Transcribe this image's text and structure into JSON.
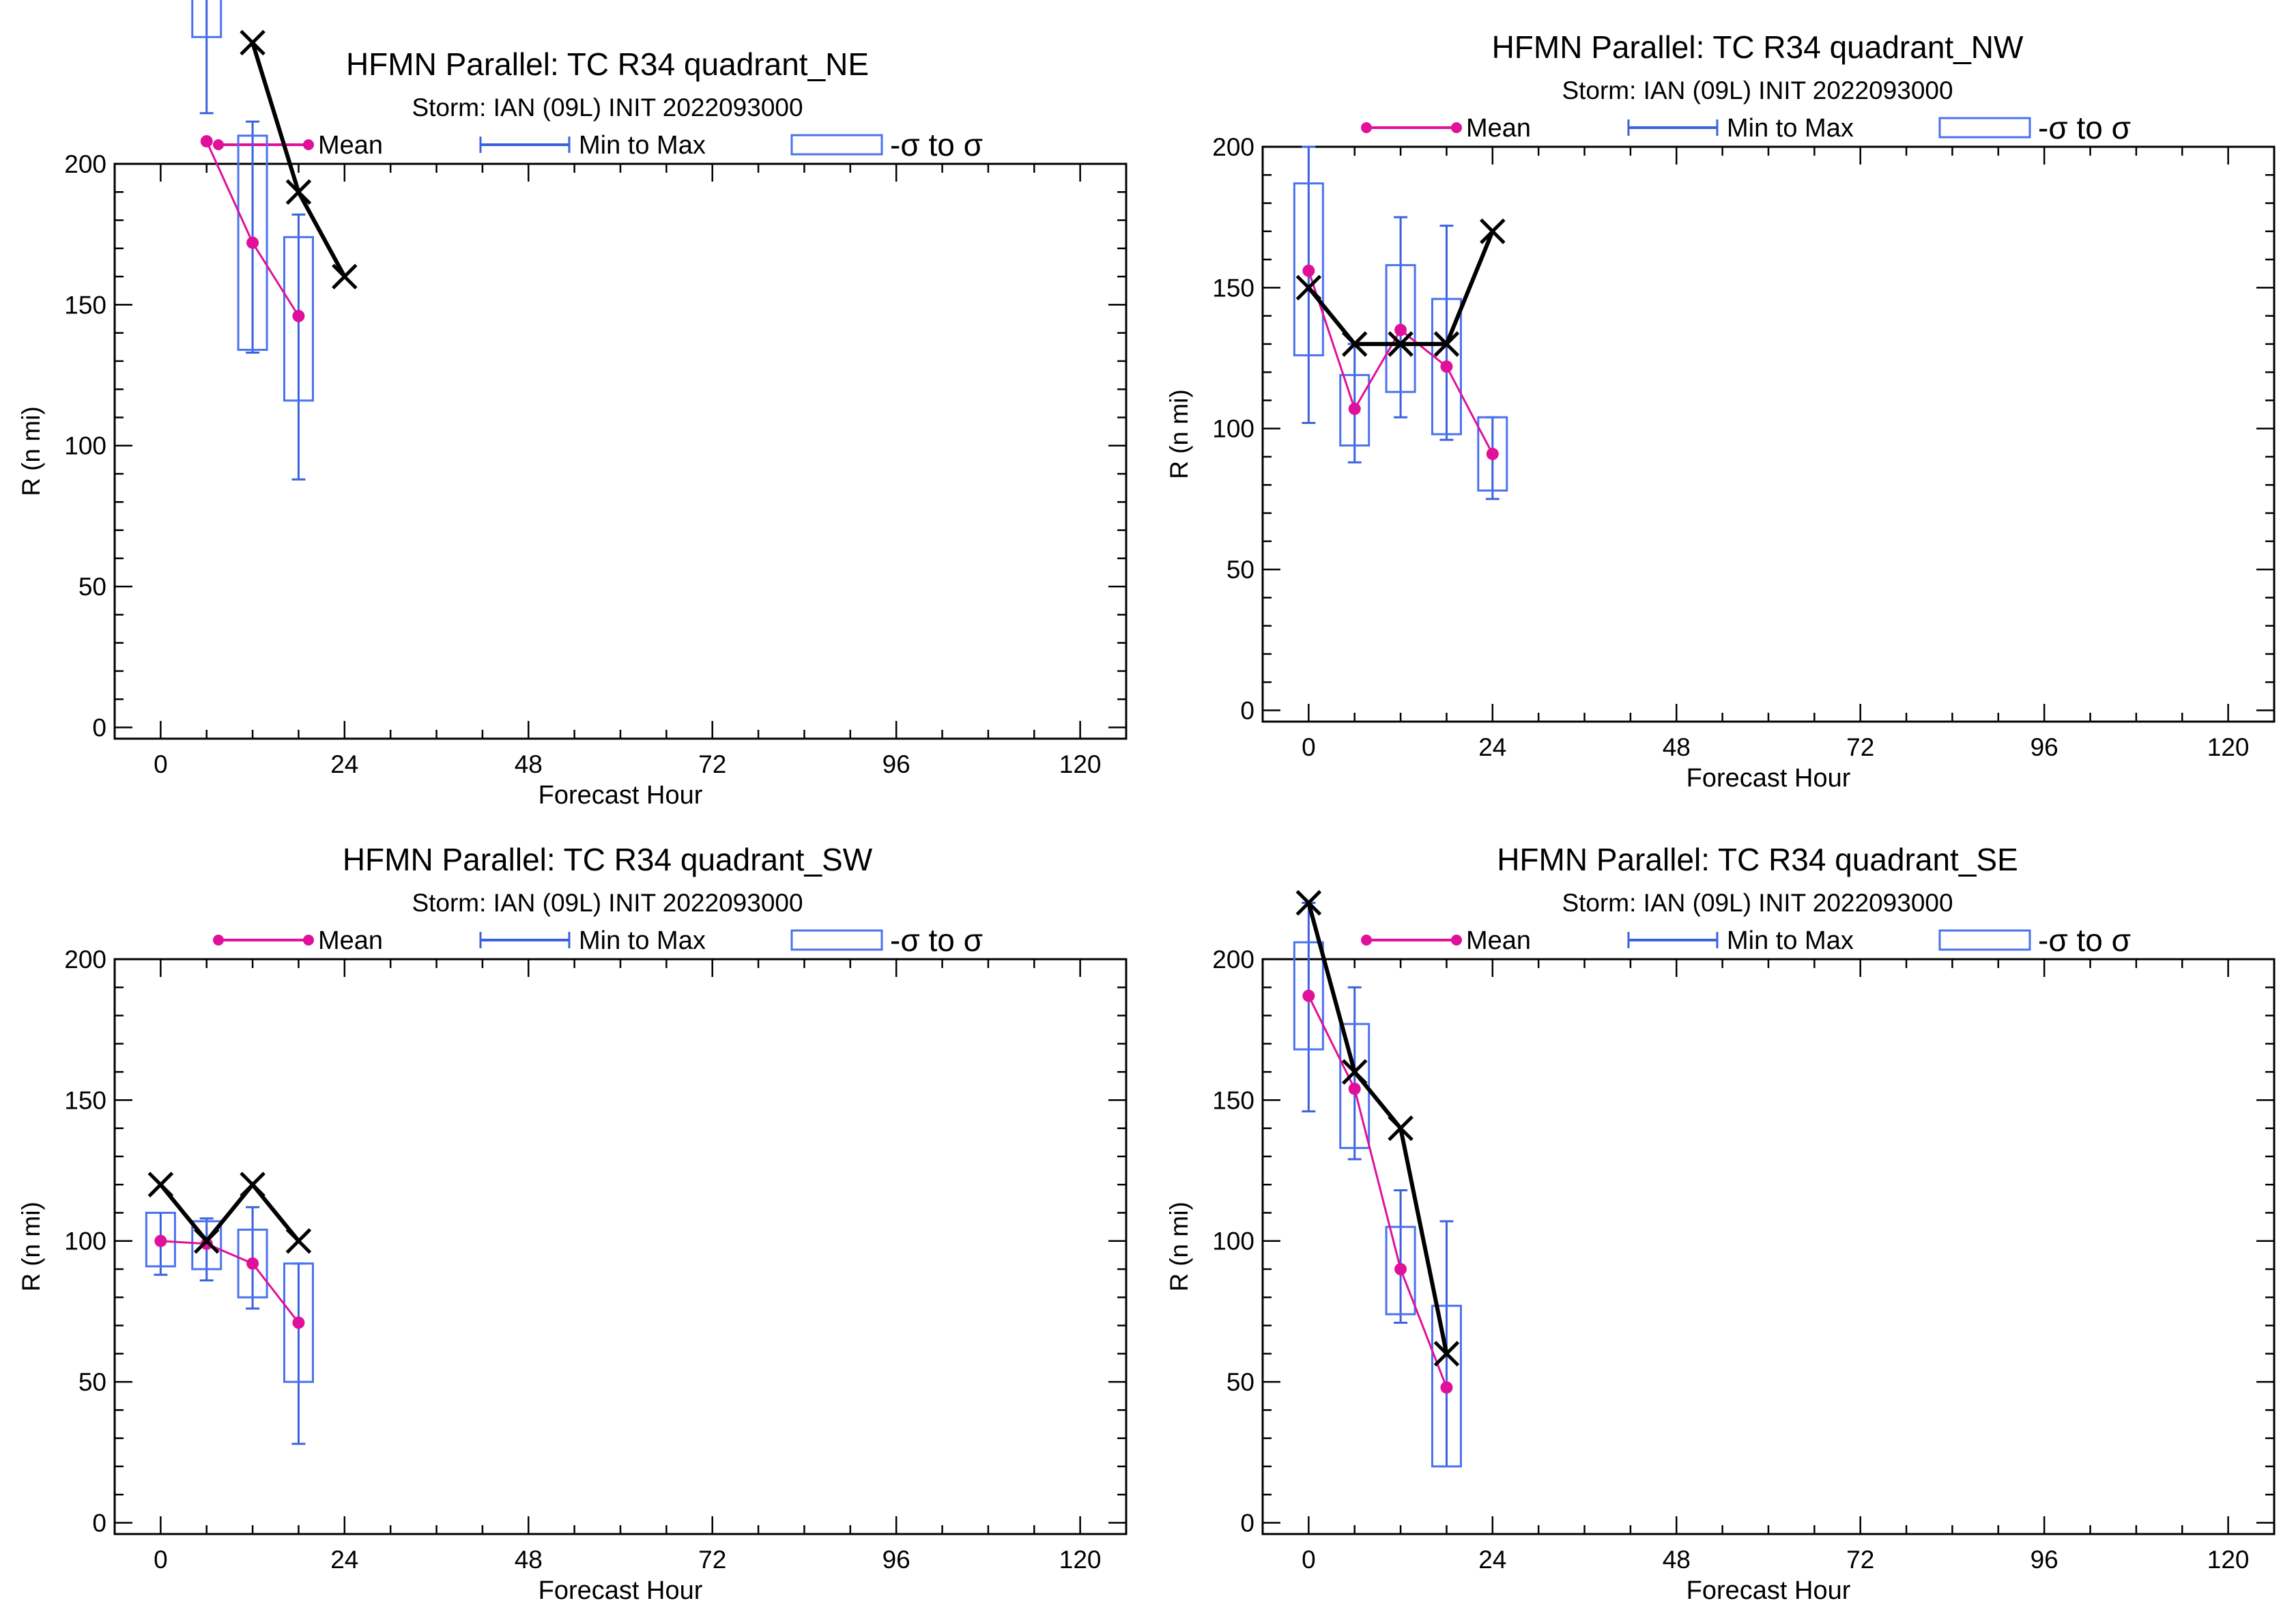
{
  "colors": {
    "mean": "#e0109a",
    "minmax": "#3a62dd",
    "sigma": "#4a72ee",
    "observed": "#000000",
    "axis": "#000000"
  },
  "legend": {
    "mean": "Mean",
    "minmax": "Min to Max",
    "sigma": "-σ to σ"
  },
  "chart_data": [
    {
      "type": "box",
      "quadrant": "NE",
      "title": "HFMN Parallel: TC  R34 quadrant_NE",
      "subtitle": "Storm: IAN (09L) INIT 2022093000",
      "xlabel": "Forecast Hour",
      "ylabel": "R (n mi)",
      "xticks": [
        0,
        24,
        48,
        72,
        96,
        120
      ],
      "yticks": [
        0,
        50,
        100,
        150,
        200
      ],
      "xlim": [
        -6,
        126
      ],
      "ylim": [
        -4,
        200
      ],
      "mean": [
        [
          6,
          208
        ],
        [
          12,
          172
        ],
        [
          18,
          146
        ]
      ],
      "minmax": [
        [
          6,
          218,
          260
        ],
        [
          12,
          133,
          215
        ],
        [
          18,
          88,
          182
        ]
      ],
      "sigma": [
        [
          6,
          245,
          260
        ],
        [
          12,
          134,
          210
        ],
        [
          18,
          116,
          174
        ]
      ],
      "observed": [
        [
          12,
          243
        ],
        [
          18,
          190
        ],
        [
          24,
          160
        ]
      ]
    },
    {
      "type": "box",
      "quadrant": "NW",
      "title": "HFMN Parallel: TC  R34 quadrant_NW",
      "subtitle": "Storm: IAN (09L) INIT 2022093000",
      "xlabel": "Forecast Hour",
      "ylabel": "R (n mi)",
      "xticks": [
        0,
        24,
        48,
        72,
        96,
        120
      ],
      "yticks": [
        0,
        50,
        100,
        150,
        200
      ],
      "xlim": [
        -6,
        126
      ],
      "ylim": [
        -4,
        200
      ],
      "mean": [
        [
          0,
          156
        ],
        [
          6,
          107
        ],
        [
          12,
          135
        ],
        [
          18,
          122
        ],
        [
          24,
          91
        ]
      ],
      "minmax": [
        [
          0,
          102,
          200
        ],
        [
          6,
          88,
          130
        ],
        [
          12,
          104,
          175
        ],
        [
          18,
          96,
          172
        ],
        [
          24,
          75,
          104
        ]
      ],
      "sigma": [
        [
          0,
          126,
          187
        ],
        [
          6,
          94,
          119
        ],
        [
          12,
          113,
          158
        ],
        [
          18,
          98,
          146
        ],
        [
          24,
          78,
          104
        ]
      ],
      "observed": [
        [
          0,
          150
        ],
        [
          6,
          130
        ],
        [
          12,
          130
        ],
        [
          18,
          130
        ],
        [
          24,
          170
        ]
      ]
    },
    {
      "type": "box",
      "quadrant": "SW",
      "title": "HFMN Parallel: TC  R34 quadrant_SW",
      "subtitle": "Storm: IAN (09L) INIT 2022093000",
      "xlabel": "Forecast Hour",
      "ylabel": "R (n mi)",
      "xticks": [
        0,
        24,
        48,
        72,
        96,
        120
      ],
      "yticks": [
        0,
        50,
        100,
        150,
        200
      ],
      "xlim": [
        -6,
        126
      ],
      "ylim": [
        -4,
        200
      ],
      "mean": [
        [
          0,
          100
        ],
        [
          6,
          99
        ],
        [
          12,
          92
        ],
        [
          18,
          71
        ]
      ],
      "minmax": [
        [
          0,
          88,
          110
        ],
        [
          6,
          86,
          108
        ],
        [
          12,
          76,
          112
        ],
        [
          18,
          28,
          92
        ]
      ],
      "sigma": [
        [
          0,
          91,
          110
        ],
        [
          6,
          90,
          107
        ],
        [
          12,
          80,
          104
        ],
        [
          18,
          50,
          92
        ]
      ],
      "observed": [
        [
          0,
          120
        ],
        [
          6,
          100
        ],
        [
          12,
          120
        ],
        [
          18,
          100
        ]
      ]
    },
    {
      "type": "box",
      "quadrant": "SE",
      "title": "HFMN Parallel: TC  R34 quadrant_SE",
      "subtitle": "Storm: IAN (09L) INIT 2022093000",
      "xlabel": "Forecast Hour",
      "ylabel": "R (n mi)",
      "xticks": [
        0,
        24,
        48,
        72,
        96,
        120
      ],
      "yticks": [
        0,
        50,
        100,
        150,
        200
      ],
      "xlim": [
        -6,
        126
      ],
      "ylim": [
        -4,
        200
      ],
      "mean": [
        [
          0,
          187
        ],
        [
          6,
          154
        ],
        [
          12,
          90
        ],
        [
          18,
          48
        ]
      ],
      "minmax": [
        [
          0,
          146,
          220
        ],
        [
          6,
          129,
          190
        ],
        [
          12,
          71,
          118
        ],
        [
          18,
          20,
          107
        ]
      ],
      "sigma": [
        [
          0,
          168,
          206
        ],
        [
          6,
          133,
          177
        ],
        [
          12,
          74,
          105
        ],
        [
          18,
          20,
          77
        ]
      ],
      "observed": [
        [
          0,
          220
        ],
        [
          6,
          160
        ],
        [
          12,
          140
        ],
        [
          18,
          60
        ]
      ]
    }
  ]
}
